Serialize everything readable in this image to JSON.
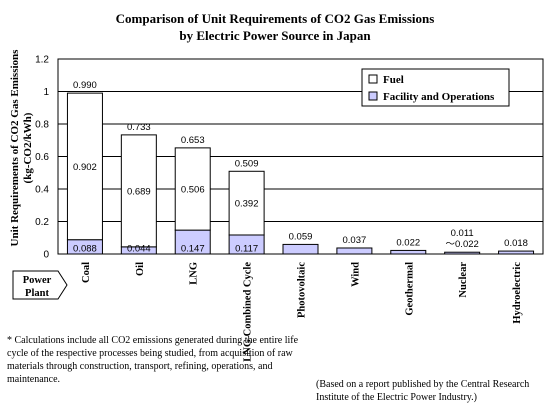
{
  "chart_data": {
    "type": "bar",
    "stacked": true,
    "title": "Comparison of Unit Requirements of CO2 Gas Emissions",
    "subtitle": "by Electric Power Source in Japan",
    "ylabel": "Unit Requirements of CO2 Gas Emissions",
    "ylabel_unit": "(kg-CO2/kWh)",
    "xlabel": "Power Plant",
    "ylim": [
      0,
      1.2
    ],
    "yticks": [
      "0",
      "0.2",
      "0.4",
      "0.6",
      "0.8",
      "1",
      "1.2"
    ],
    "grid": true,
    "legend_position": "top-right",
    "categories": [
      "Coal",
      "Oil",
      "LNG",
      "LNG Combined Cycle",
      "Photovoltaic",
      "Wind",
      "Geothermal",
      "Nuclear",
      "Hydroelectric"
    ],
    "series": [
      {
        "name": "Facility and Operations",
        "color": "#ccccff",
        "values": [
          0.088,
          0.044,
          0.147,
          0.117,
          0.059,
          0.037,
          0.022,
          0.011,
          0.018
        ],
        "labels": [
          "0.088",
          "0.044",
          "0.147",
          "0.117",
          "",
          "",
          "",
          "",
          ""
        ]
      },
      {
        "name": "Fuel",
        "color": "#ffffff",
        "values": [
          0.902,
          0.689,
          0.506,
          0.392,
          0,
          0,
          0,
          0,
          0
        ],
        "labels": [
          "0.902",
          "0.689",
          "0.506",
          "0.392",
          "",
          "",
          "",
          "",
          ""
        ]
      }
    ],
    "totals": [
      "0.990",
      "0.733",
      "0.653",
      "0.509",
      "0.059",
      "0.037",
      "0.022",
      "0.011\n～0.022",
      "0.018"
    ]
  },
  "notes": {
    "footnote": "* Calculations include all CO2 emissions generated during the entire life cycle of the respective processes being studied, from acquisition of raw materials through construction, transport, refining, operations, and maintenance.",
    "source": "(Based on a report published by the Central Research Institute of the Electric Power Industry.)"
  }
}
